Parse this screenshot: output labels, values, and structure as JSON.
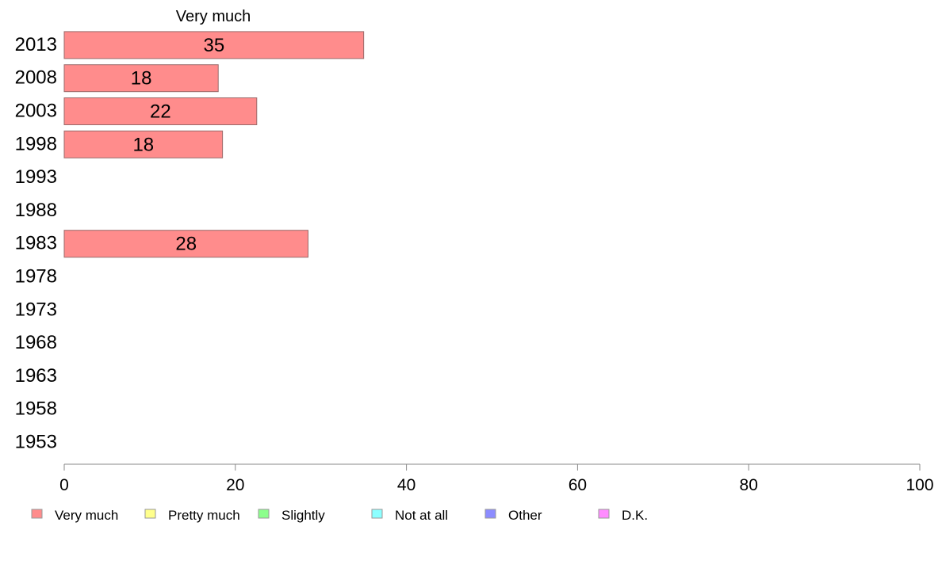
{
  "chart_data": {
    "type": "bar",
    "orientation": "horizontal",
    "title": "Very much",
    "categories": [
      "2013",
      "2008",
      "2003",
      "1998",
      "1993",
      "1988",
      "1983",
      "1978",
      "1973",
      "1968",
      "1963",
      "1958",
      "1953"
    ],
    "series": [
      {
        "name": "Very much",
        "color": "#ff8c8c",
        "values": [
          35,
          18,
          22.5,
          18.5,
          null,
          null,
          28.5,
          null,
          null,
          null,
          null,
          null,
          null
        ]
      }
    ],
    "data_labels": [
      "35",
      "18",
      "22",
      "18",
      "",
      "",
      "28",
      "",
      "",
      "",
      "",
      "",
      ""
    ],
    "xlim": [
      0,
      100
    ],
    "xticks": [
      "0",
      "20",
      "40",
      "60",
      "80",
      "100"
    ],
    "grid": false,
    "legend_position": "bottom",
    "legend": [
      {
        "label": "Very much",
        "color": "#ff8c8c"
      },
      {
        "label": "Pretty much",
        "color": "#ffff8c"
      },
      {
        "label": "Slightly",
        "color": "#8cff8c"
      },
      {
        "label": "Not at all",
        "color": "#8cffff"
      },
      {
        "label": "Other",
        "color": "#8c8cff"
      },
      {
        "label": "D.K.",
        "color": "#ff8cff"
      }
    ]
  }
}
